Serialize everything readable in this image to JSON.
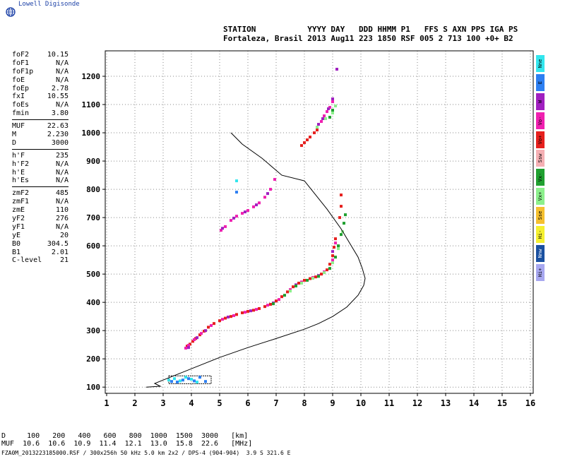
{
  "brand": {
    "name": "Lowell Digisonde"
  },
  "header": {
    "line1": "STATION           YYYY DAY   DDD HHMM P1   FFS S AXN PPS IGA PS",
    "line2": "Fortaleza, Brasil 2013 Aug11 223 1850 RSF 005 2 713 100 +0+ B2"
  },
  "params": {
    "group1": [
      {
        "label": "foF2",
        "value": "10.15"
      },
      {
        "label": "foF1",
        "value": "N/A"
      },
      {
        "label": "foF1p",
        "value": "N/A"
      },
      {
        "label": "foE",
        "value": "N/A"
      },
      {
        "label": "foEp",
        "value": "2.78"
      },
      {
        "label": "fxI",
        "value": "10.55"
      },
      {
        "label": "foEs",
        "value": "N/A"
      },
      {
        "label": "fmin",
        "value": "3.80"
      }
    ],
    "group2": [
      {
        "label": "MUF",
        "value": "22.63"
      },
      {
        "label": "M",
        "value": "2.230"
      },
      {
        "label": "D",
        "value": "3000"
      }
    ],
    "group3": [
      {
        "label": "h'F",
        "value": "235"
      },
      {
        "label": "h'F2",
        "value": "N/A"
      },
      {
        "label": "h'E",
        "value": "N/A"
      },
      {
        "label": "h'Es",
        "value": "N/A"
      }
    ],
    "group4": [
      {
        "label": "zmF2",
        "value": "485"
      },
      {
        "label": "zmF1",
        "value": "N/A"
      },
      {
        "label": "zmE",
        "value": "110"
      },
      {
        "label": "yF2",
        "value": "276"
      },
      {
        "label": "yF1",
        "value": "N/A"
      },
      {
        "label": "yE",
        "value": "20"
      },
      {
        "label": "B0",
        "value": "304.5"
      },
      {
        "label": "B1",
        "value": "2.01"
      },
      {
        "label": "C-level",
        "value": "21"
      }
    ]
  },
  "legend": [
    {
      "label": "Nne",
      "color": "#33e6ee"
    },
    {
      "label": "E",
      "color": "#2d7ff2"
    },
    {
      "label": "W",
      "color": "#a020c0"
    },
    {
      "label": "Vo-",
      "color": "#f020b0"
    },
    {
      "label": "Vo+",
      "color": "#e6201e"
    },
    {
      "label": "Ssw",
      "color": "#f5b0b4"
    },
    {
      "label": "Vx-",
      "color": "#20a030"
    },
    {
      "label": "Vx+",
      "color": "#8cf08c"
    },
    {
      "label": "Sse",
      "color": "#f5c030"
    },
    {
      "label": "Hi-",
      "color": "#f5f030"
    },
    {
      "label": "Nnw",
      "color": "#1a50a0"
    },
    {
      "label": "Hi+",
      "color": "#a8a8f0"
    }
  ],
  "footer": {
    "line1": "D     100   200   400   600   800  1000  1500  3000   [km]",
    "line2": "MUF  10.6  10.6  10.9  11.4  12.1  13.0  15.8  22.6   [MHz]",
    "line3": "FZA0M_2013223185000.RSF / 300x256h 50 kHz 5.0 km 2x2 / DPS-4 (904-904)  3.9 S 321.6 E"
  },
  "chart_data": {
    "type": "scatter",
    "x_ticks": [
      1,
      2,
      3,
      4,
      5,
      6,
      7,
      8,
      9,
      10,
      11,
      12,
      13,
      14,
      15,
      16
    ],
    "y_ticks": [
      100,
      200,
      300,
      400,
      500,
      600,
      700,
      800,
      900,
      1000,
      1100,
      1200
    ],
    "xlim": [
      0.95,
      16.1
    ],
    "ylim": [
      78,
      1290
    ],
    "grid": true,
    "profile_line": [
      [
        2.4,
        100
      ],
      [
        2.9,
        103
      ],
      [
        2.7,
        113
      ],
      [
        3.0,
        125
      ],
      [
        3.5,
        145
      ],
      [
        4.0,
        165
      ],
      [
        4.5,
        185
      ],
      [
        5.0,
        205
      ],
      [
        6.0,
        240
      ],
      [
        7.0,
        272
      ],
      [
        8.0,
        305
      ],
      [
        8.5,
        325
      ],
      [
        9.0,
        350
      ],
      [
        9.5,
        383
      ],
      [
        9.9,
        425
      ],
      [
        10.1,
        460
      ],
      [
        10.15,
        485
      ],
      [
        10.05,
        520
      ],
      [
        9.9,
        560
      ],
      [
        9.6,
        610
      ],
      [
        9.3,
        660
      ],
      [
        8.8,
        730
      ],
      [
        8.0,
        830
      ],
      [
        7.2,
        850
      ],
      [
        6.5,
        910
      ],
      [
        5.8,
        960
      ],
      [
        5.4,
        1000
      ]
    ],
    "series": [
      {
        "color": "#e6201e",
        "points": [
          [
            3.85,
            245
          ],
          [
            3.95,
            252
          ],
          [
            4.05,
            262
          ],
          [
            4.15,
            272
          ],
          [
            4.3,
            285
          ],
          [
            4.45,
            298
          ],
          [
            4.6,
            312
          ],
          [
            4.8,
            325
          ],
          [
            5.0,
            335
          ],
          [
            5.2,
            344
          ],
          [
            5.4,
            350
          ],
          [
            5.6,
            357
          ],
          [
            5.8,
            363
          ],
          [
            6.0,
            368
          ],
          [
            6.2,
            372
          ],
          [
            6.4,
            378
          ],
          [
            6.6,
            385
          ],
          [
            6.8,
            393
          ],
          [
            7.0,
            405
          ],
          [
            7.2,
            420
          ],
          [
            7.4,
            437
          ],
          [
            7.6,
            455
          ],
          [
            7.8,
            468
          ],
          [
            8.0,
            478
          ],
          [
            8.2,
            484
          ],
          [
            8.4,
            490
          ],
          [
            8.6,
            500
          ],
          [
            8.8,
            515
          ],
          [
            8.9,
            535
          ],
          [
            9.0,
            565
          ],
          [
            9.05,
            595
          ],
          [
            9.1,
            625
          ],
          [
            7.9,
            955
          ],
          [
            8.0,
            965
          ],
          [
            8.1,
            975
          ],
          [
            8.2,
            985
          ],
          [
            8.35,
            1000
          ],
          [
            8.45,
            1010
          ],
          [
            9.25,
            700
          ],
          [
            9.3,
            740
          ],
          [
            9.3,
            780
          ]
        ]
      },
      {
        "color": "#f020b0",
        "points": [
          [
            3.8,
            238
          ],
          [
            3.9,
            248
          ],
          [
            4.1,
            268
          ],
          [
            4.35,
            290
          ],
          [
            4.7,
            318
          ],
          [
            5.1,
            340
          ],
          [
            5.5,
            353
          ],
          [
            5.9,
            365
          ],
          [
            6.3,
            375
          ],
          [
            6.7,
            390
          ],
          [
            7.1,
            410
          ],
          [
            7.5,
            445
          ],
          [
            7.9,
            472
          ],
          [
            8.3,
            488
          ],
          [
            8.7,
            508
          ],
          [
            9.0,
            550
          ],
          [
            9.1,
            610
          ],
          [
            5.05,
            655
          ],
          [
            5.2,
            668
          ],
          [
            5.4,
            690
          ],
          [
            5.6,
            705
          ],
          [
            5.8,
            715
          ],
          [
            6.0,
            725
          ],
          [
            6.2,
            738
          ],
          [
            6.4,
            752
          ],
          [
            6.6,
            772
          ],
          [
            6.8,
            800
          ],
          [
            6.95,
            835
          ],
          [
            8.6,
            1040
          ],
          [
            8.7,
            1060
          ],
          [
            8.8,
            1075
          ],
          [
            8.9,
            1090
          ],
          [
            9.0,
            1110
          ]
        ]
      },
      {
        "color": "#a020c0",
        "points": [
          [
            3.9,
            240
          ],
          [
            4.2,
            275
          ],
          [
            4.5,
            300
          ],
          [
            5.3,
            348
          ],
          [
            6.1,
            370
          ],
          [
            6.9,
            398
          ],
          [
            7.7,
            462
          ],
          [
            8.5,
            495
          ],
          [
            9.0,
            580
          ],
          [
            5.1,
            662
          ],
          [
            5.5,
            698
          ],
          [
            5.9,
            720
          ],
          [
            6.3,
            745
          ],
          [
            6.7,
            785
          ],
          [
            8.5,
            1030
          ],
          [
            8.65,
            1050
          ],
          [
            8.85,
            1085
          ],
          [
            9.0,
            1120
          ],
          [
            9.15,
            1225
          ]
        ]
      },
      {
        "color": "#20a030",
        "points": [
          [
            6.9,
            395
          ],
          [
            7.3,
            425
          ],
          [
            7.7,
            458
          ],
          [
            8.1,
            478
          ],
          [
            8.5,
            492
          ],
          [
            8.9,
            520
          ],
          [
            9.1,
            560
          ],
          [
            9.2,
            600
          ],
          [
            9.3,
            640
          ],
          [
            9.4,
            680
          ],
          [
            9.45,
            710
          ],
          [
            8.9,
            1055
          ],
          [
            9.0,
            1080
          ]
        ]
      },
      {
        "color": "#8cf08c",
        "points": [
          [
            7.5,
            440
          ],
          [
            7.9,
            468
          ],
          [
            8.3,
            485
          ],
          [
            8.7,
            505
          ],
          [
            9.0,
            540
          ],
          [
            9.2,
            590
          ],
          [
            9.35,
            650
          ],
          [
            8.45,
            1020
          ],
          [
            8.75,
            1050
          ],
          [
            9.0,
            1070
          ],
          [
            9.1,
            1095
          ]
        ]
      },
      {
        "color": "#2d7ff2",
        "points": [
          [
            3.3,
            120
          ],
          [
            3.5,
            118
          ],
          [
            3.7,
            125
          ],
          [
            3.9,
            130
          ],
          [
            4.1,
            122
          ],
          [
            4.3,
            135
          ],
          [
            4.5,
            120
          ],
          [
            5.6,
            790
          ]
        ]
      },
      {
        "color": "#33e6ee",
        "points": [
          [
            3.2,
            125
          ],
          [
            3.4,
            130
          ],
          [
            3.6,
            122
          ],
          [
            3.8,
            135
          ],
          [
            4.0,
            128
          ],
          [
            4.2,
            118
          ],
          [
            5.6,
            830
          ]
        ]
      }
    ],
    "noise_box": {
      "x": [
        3.2,
        4.7
      ],
      "y": [
        112,
        140
      ]
    }
  }
}
